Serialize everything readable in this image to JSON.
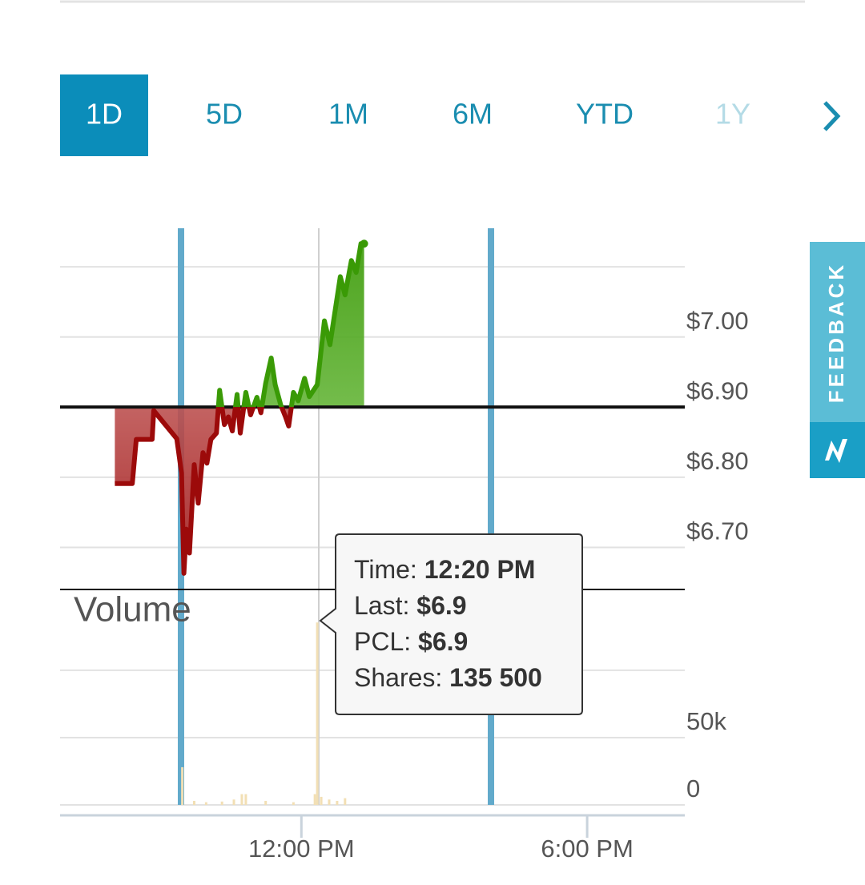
{
  "tabs": [
    "1D",
    "5D",
    "1M",
    "6M",
    "YTD",
    "1Y"
  ],
  "feedback": "FEEDBACK",
  "chart_data": [
    {
      "type": "line",
      "name": "price",
      "x": [
        "08:05",
        "08:27",
        "08:32",
        "08:52",
        "08:54",
        "09:23",
        "09:29",
        "09:32",
        "09:35",
        "09:39",
        "09:45",
        "09:50",
        "09:56",
        "10:01",
        "10:06",
        "10:13",
        "10:17",
        "10:23",
        "10:28",
        "10:33",
        "10:39",
        "10:43",
        "10:50",
        "10:56",
        "11:04",
        "11:09",
        "11:15",
        "11:22",
        "11:27",
        "11:34",
        "11:40",
        "11:44",
        "11:50",
        "11:56",
        "12:04",
        "12:10",
        "12:20",
        "12:29",
        "12:36",
        "12:49",
        "12:55",
        "13:03",
        "13:09",
        "13:15",
        "13:19"
      ],
      "values": [
        6.791,
        6.791,
        6.854,
        6.854,
        6.895,
        6.855,
        6.806,
        6.663,
        6.726,
        6.692,
        6.818,
        6.763,
        6.835,
        6.82,
        6.854,
        6.863,
        6.924,
        6.875,
        6.886,
        6.866,
        6.918,
        6.863,
        6.921,
        6.889,
        6.914,
        6.892,
        6.934,
        6.97,
        6.932,
        6.903,
        6.886,
        6.873,
        6.921,
        6.909,
        6.941,
        6.915,
        6.932,
        7.023,
        6.989,
        7.086,
        7.06,
        7.109,
        7.092,
        7.133,
        7.133
      ],
      "previous_close": 6.9,
      "up_color": "#3a9a06",
      "down_color": "#9c0a0a",
      "xlim": [
        "06:56",
        "20:03"
      ],
      "ylim": [
        6.64,
        7.155
      ],
      "yticks": [
        {
          "value": 6.7,
          "label": "$6.70"
        },
        {
          "value": 6.8,
          "label": "$6.80"
        },
        {
          "value": 6.9,
          "label": "$6.90"
        },
        {
          "value": 7.0,
          "label": "$7.00"
        },
        {
          "value": 7.1,
          "label": null
        }
      ],
      "grid": true
    },
    {
      "type": "bar",
      "title": "Volume",
      "x": [
        "09:30",
        "09:45",
        "10:00",
        "10:20",
        "10:35",
        "10:45",
        "10:50",
        "11:15",
        "11:50",
        "12:17",
        "12:20",
        "12:25",
        "12:35",
        "12:45",
        "12:55"
      ],
      "values": [
        28000,
        3000,
        2000,
        2500,
        4000,
        8000,
        8000,
        3000,
        2000,
        8000,
        135500,
        6000,
        4000,
        3000,
        5000
      ],
      "color": "#f2dfb4",
      "xlim": [
        "06:56",
        "20:03"
      ],
      "ylim": [
        0,
        160000
      ],
      "yticks": [
        0,
        {
          "value": 50000,
          "label": "50k"
        },
        {
          "value": 100000,
          "label": null
        }
      ],
      "xticks": [
        {
          "value": "12:00",
          "label": "12:00 PM"
        },
        {
          "value": "18:00",
          "label": "6:00 PM"
        }
      ],
      "grid": true
    }
  ],
  "tooltip": [
    {
      "label": "Time:",
      "value": "12:20 PM"
    },
    {
      "label": "Last:",
      "value": "$6.9"
    },
    {
      "label": "PCL:",
      "value": "$6.9"
    },
    {
      "label": "Shares:",
      "value": "135 500"
    }
  ]
}
